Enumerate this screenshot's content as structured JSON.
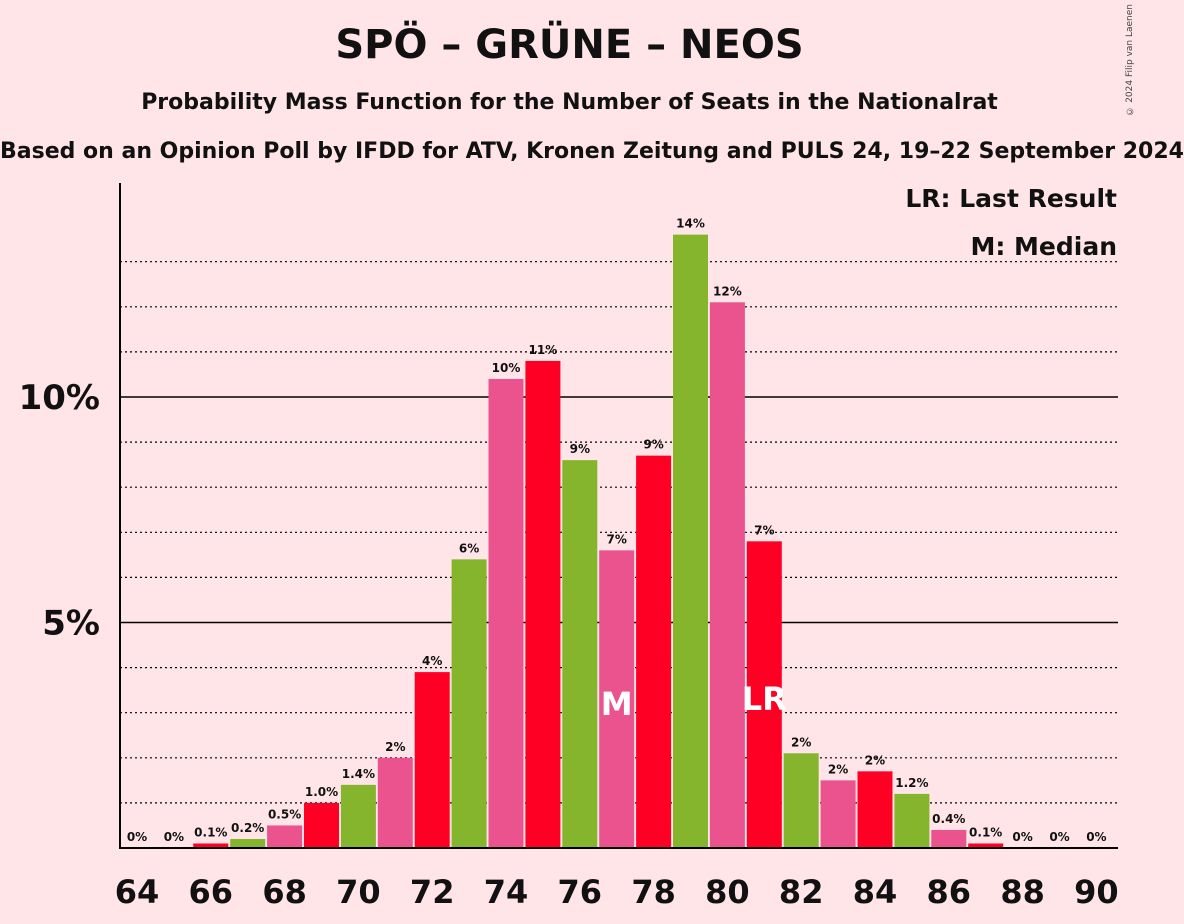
{
  "title": "SPÖ – GRÜNE – NEOS",
  "subtitle": "Probability Mass Function for the Number of Seats in the Nationalrat",
  "source": "Based on an Opinion Poll by IFDD for ATV, Kronen Zeitung and PULS 24, 19–22 September 2024",
  "copyright": "© 2024 Filip van Laenen",
  "legend": {
    "last_result": "LR: Last Result",
    "median": "M: Median"
  },
  "colors": {
    "red": "#FF0025",
    "green": "#84B52D",
    "pink": "#EA538E",
    "background": "#FFE4E8"
  },
  "chart_data": {
    "type": "bar",
    "x": [
      64,
      65,
      66,
      67,
      68,
      69,
      70,
      71,
      72,
      73,
      74,
      75,
      76,
      77,
      78,
      79,
      80,
      81,
      82,
      83,
      84,
      85,
      86,
      87,
      88,
      89,
      90
    ],
    "values": [
      0,
      0,
      0.1,
      0.2,
      0.5,
      1.0,
      1.4,
      2.0,
      3.9,
      6.4,
      10.4,
      10.8,
      8.6,
      6.6,
      8.7,
      13.6,
      12.1,
      6.8,
      2.1,
      1.5,
      1.7,
      1.2,
      0.4,
      0.1,
      0,
      0,
      0
    ],
    "labels": [
      "0%",
      "0%",
      "0.1%",
      "0.2%",
      "0.5%",
      "1.0%",
      "1.4%",
      "2%",
      "4%",
      "6%",
      "10%",
      "11%",
      "9%",
      "7%",
      "9%",
      "14%",
      "12%",
      "7%",
      "2%",
      "2%",
      "2%",
      "1.2%",
      "0.4%",
      "0.1%",
      "0%",
      "0%",
      "0%"
    ],
    "bar_colors": [
      "red",
      "green",
      "red",
      "green",
      "pink",
      "red",
      "green",
      "pink",
      "red",
      "green",
      "pink",
      "red",
      "green",
      "pink",
      "red",
      "green",
      "pink",
      "red",
      "green",
      "pink",
      "red",
      "green",
      "pink",
      "red",
      "green",
      "pink",
      "red"
    ],
    "x_tick_labels": [
      "64",
      "66",
      "68",
      "70",
      "72",
      "74",
      "76",
      "78",
      "80",
      "82",
      "84",
      "86",
      "88",
      "90"
    ],
    "y_tick_labels": [
      {
        "value": 5,
        "label": "5%"
      },
      {
        "value": 10,
        "label": "10%"
      }
    ],
    "ylim": [
      0,
      14.8
    ],
    "median": {
      "x": 77,
      "label": "M"
    },
    "last_result": {
      "x": 81,
      "label": "LR"
    },
    "grid": true,
    "legend_position": "top-right"
  }
}
